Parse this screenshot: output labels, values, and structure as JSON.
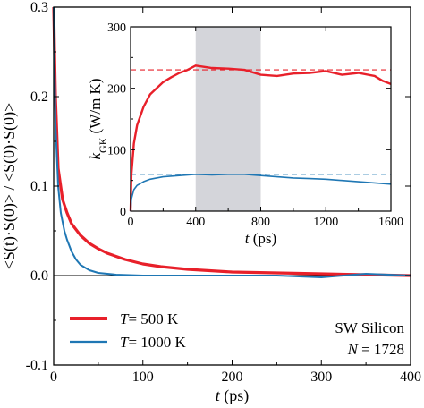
{
  "chart_data": [
    {
      "id": "main",
      "type": "line",
      "xlabel_var": "t",
      "xlabel_unit": "(ps)",
      "ylabel": "<S(t)·S(0)> / <S(0)·S(0)>",
      "xlim": [
        0,
        400
      ],
      "ylim": [
        -0.1,
        0.3
      ],
      "xticks": [
        0,
        100,
        200,
        300,
        400
      ],
      "yticks": [
        -0.1,
        0.0,
        0.1,
        0.2,
        0.3
      ],
      "ytick_labels": [
        "-0.1",
        "0.0",
        "0.1",
        "0.2",
        "0.3"
      ],
      "zero_line": true,
      "legend_position": "bottom-left",
      "series": [
        {
          "label_var": "T",
          "label_rest": "= 500 K",
          "color": "#e8202a",
          "x": [
            0,
            2,
            5,
            10,
            15,
            20,
            30,
            40,
            50,
            60,
            80,
            100,
            120,
            150,
            200,
            250,
            300,
            350,
            400
          ],
          "y": [
            0.3,
            0.2,
            0.12,
            0.085,
            0.07,
            0.058,
            0.045,
            0.036,
            0.03,
            0.025,
            0.018,
            0.013,
            0.01,
            0.007,
            0.004,
            0.003,
            0.002,
            0.001,
            0.0
          ]
        },
        {
          "label_var": "T",
          "label_rest": "= 1000 K",
          "color": "#1f77b4",
          "x": [
            0,
            2,
            5,
            8,
            12,
            15,
            20,
            25,
            30,
            40,
            50,
            70,
            100,
            150,
            200,
            250,
            300,
            350,
            400
          ],
          "y": [
            0.3,
            0.17,
            0.1,
            0.07,
            0.05,
            0.04,
            0.027,
            0.018,
            0.012,
            0.006,
            0.003,
            0.001,
            0.0,
            0.0,
            0.0,
            0.0,
            -0.002,
            0.002,
            0.0
          ]
        }
      ],
      "annotation": {
        "line1": "SW Silicon",
        "line2_var": "N",
        "line2_rest": " = 1728"
      }
    },
    {
      "id": "inset",
      "type": "line",
      "xlabel_var": "t",
      "xlabel_unit": "(ps)",
      "ylabel_var": "k",
      "ylabel_sub": "GK",
      "ylabel_unit": "(W/m K)",
      "xlim": [
        0,
        1600
      ],
      "ylim": [
        0,
        300
      ],
      "xticks": [
        0,
        400,
        800,
        1200,
        1600
      ],
      "yticks": [
        0,
        100,
        200,
        300
      ],
      "shaded_region": [
        400,
        800
      ],
      "reference_lines": [
        {
          "y": 230,
          "color": "#e8202a"
        },
        {
          "y": 60,
          "color": "#1f77b4"
        }
      ],
      "series": [
        {
          "color": "#e8202a",
          "x": [
            0,
            5,
            20,
            40,
            80,
            120,
            160,
            200,
            250,
            300,
            350,
            400,
            450,
            500,
            600,
            700,
            800,
            900,
            1000,
            1100,
            1200,
            1300,
            1400,
            1500,
            1550,
            1600
          ],
          "y": [
            0,
            60,
            110,
            140,
            170,
            190,
            200,
            210,
            218,
            225,
            230,
            237,
            235,
            233,
            232,
            230,
            222,
            220,
            224,
            225,
            228,
            222,
            225,
            220,
            212,
            207
          ]
        },
        {
          "color": "#1f77b4",
          "x": [
            0,
            5,
            20,
            40,
            80,
            120,
            200,
            300,
            400,
            500,
            600,
            700,
            800,
            900,
            1000,
            1100,
            1200,
            1300,
            1400,
            1500,
            1600
          ],
          "y": [
            0,
            20,
            35,
            42,
            48,
            52,
            56,
            58,
            60,
            59,
            60,
            60,
            58,
            56,
            54,
            53,
            52,
            50,
            48,
            46,
            44
          ]
        }
      ]
    }
  ]
}
